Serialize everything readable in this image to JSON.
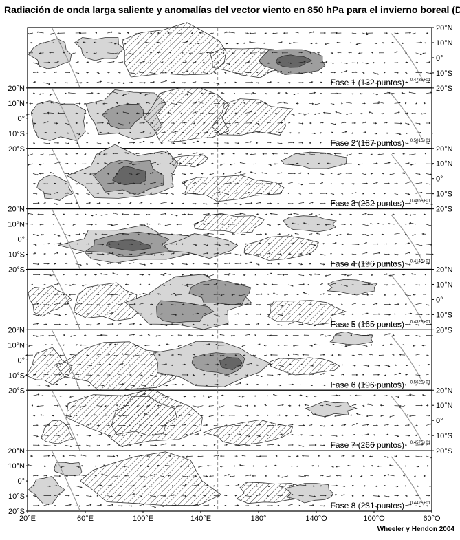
{
  "title": "Radiación de onda larga saliente y anomalías del vector viento en 850 hPa para el invierno boreal (DEF)",
  "credit": "Wheeler y Hendon 2004",
  "lat_labels": [
    "20°N",
    "10°N",
    "0°",
    "10°S",
    "20°S"
  ],
  "lon_labels": [
    "20°E",
    "60°E",
    "100°E",
    "140°E",
    "180°",
    "140°O",
    "100°O",
    "60°O"
  ],
  "panels": [
    {
      "label": "Fase 1 (132 puntos)",
      "scale": "0.473E+01",
      "lat_side": "right"
    },
    {
      "label": "Fase 2 (187 puntos)",
      "scale": "0.501E+01",
      "lat_side": "left"
    },
    {
      "label": "Fase 3 (252 puntos)",
      "scale": "0.486E+01",
      "lat_side": "right"
    },
    {
      "label": "Fase 4 (196 puntos)",
      "scale": "0.414E+01",
      "lat_side": "left"
    },
    {
      "label": "Fase 5 (165 puntos)",
      "scale": "0.432E+01",
      "lat_side": "right"
    },
    {
      "label": "Fase 6 (196 puntos)",
      "scale": "0.562E+01",
      "lat_side": "left"
    },
    {
      "label": "Fase 7 (266 puntos)",
      "scale": "0.457E+01",
      "lat_side": "right"
    },
    {
      "label": "Fase 8 (231 puntos)",
      "scale": "0.442E+01",
      "lat_side": "left"
    }
  ]
}
